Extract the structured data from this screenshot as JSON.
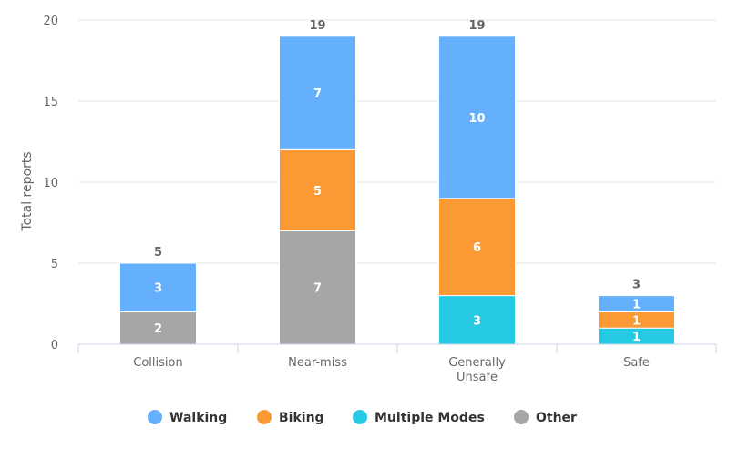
{
  "chart_data": {
    "type": "bar",
    "stacked": true,
    "ylabel": "Total reports",
    "ylim": [
      0,
      20
    ],
    "yticks": [
      0,
      5,
      10,
      15,
      20
    ],
    "grid": true,
    "legend_position": "bottom-center",
    "categories": [
      [
        "Collision"
      ],
      [
        "Near-miss"
      ],
      [
        "Generally",
        "Unsafe"
      ],
      [
        "Safe"
      ]
    ],
    "series": [
      {
        "name": "Walking",
        "color": "#64b0fc",
        "values": [
          3,
          7,
          10,
          1
        ]
      },
      {
        "name": "Biking",
        "color": "#fb9a35",
        "values": [
          0,
          5,
          6,
          1
        ]
      },
      {
        "name": "Multiple Modes",
        "color": "#25c9e4",
        "values": [
          0,
          0,
          3,
          1
        ]
      },
      {
        "name": "Other",
        "color": "#a6a6a6",
        "values": [
          2,
          7,
          0,
          0
        ]
      }
    ],
    "totals": [
      5,
      19,
      19,
      3
    ]
  }
}
